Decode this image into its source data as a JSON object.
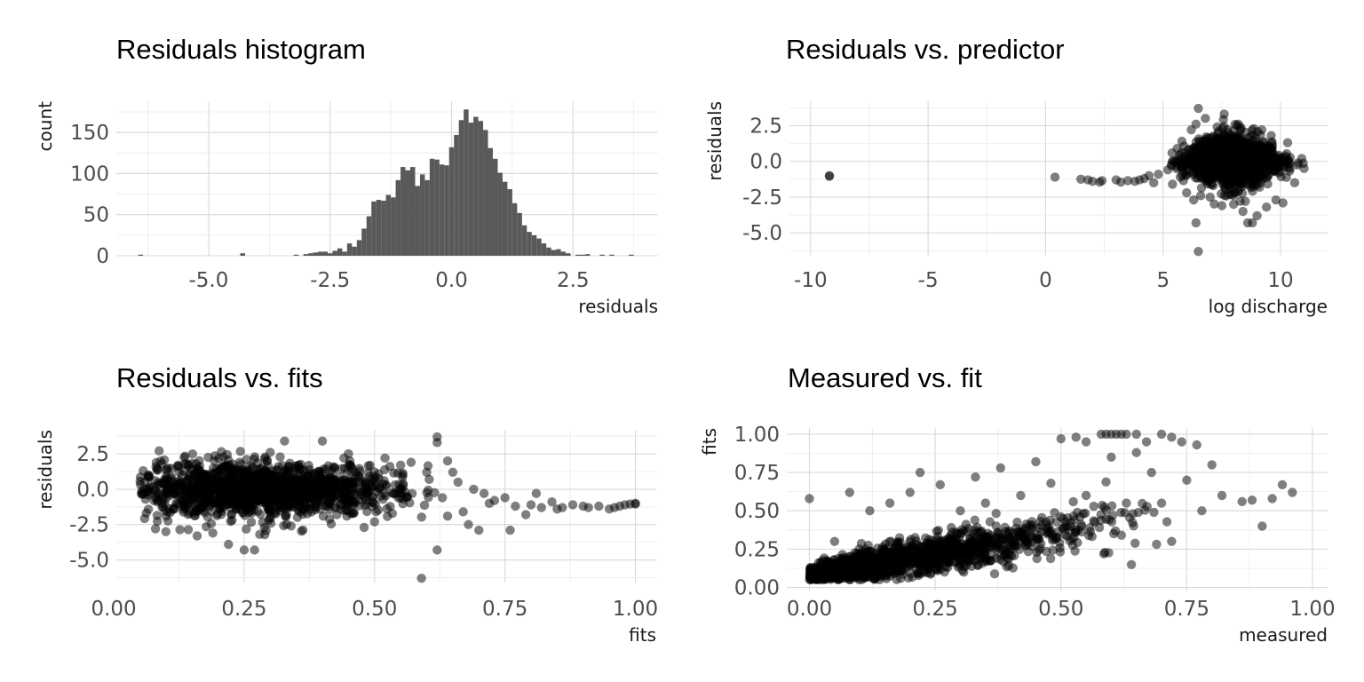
{
  "chart_data": [
    {
      "id": "hist",
      "type": "bar",
      "title": "Residuals histogram",
      "xlabel": "residuals",
      "ylabel": "count",
      "xlim": [
        -6.9,
        4.25
      ],
      "ylim": [
        0,
        188
      ],
      "xticks": [
        -5.0,
        -2.5,
        0.0,
        2.5
      ],
      "xtick_labels": [
        "-5.0",
        "-2.5",
        "0.0",
        "2.5"
      ],
      "yticks": [
        0,
        50,
        100,
        150
      ],
      "ytick_labels": [
        "0",
        "50",
        "100",
        "150"
      ],
      "grid": true,
      "bar_color": "#595959",
      "bin_width": 0.1,
      "bins": [
        {
          "x": -6.4,
          "count": 1
        },
        {
          "x": -4.3,
          "count": 3
        },
        {
          "x": -3.2,
          "count": 1
        },
        {
          "x": -3.0,
          "count": 2
        },
        {
          "x": -2.9,
          "count": 3
        },
        {
          "x": -2.8,
          "count": 4
        },
        {
          "x": -2.7,
          "count": 5
        },
        {
          "x": -2.6,
          "count": 5
        },
        {
          "x": -2.5,
          "count": 3
        },
        {
          "x": -2.4,
          "count": 6
        },
        {
          "x": -2.3,
          "count": 9
        },
        {
          "x": -2.2,
          "count": 5
        },
        {
          "x": -2.1,
          "count": 15
        },
        {
          "x": -2.0,
          "count": 11
        },
        {
          "x": -1.9,
          "count": 19
        },
        {
          "x": -1.8,
          "count": 33
        },
        {
          "x": -1.7,
          "count": 48
        },
        {
          "x": -1.6,
          "count": 66
        },
        {
          "x": -1.5,
          "count": 68
        },
        {
          "x": -1.4,
          "count": 67
        },
        {
          "x": -1.3,
          "count": 74
        },
        {
          "x": -1.2,
          "count": 71
        },
        {
          "x": -1.1,
          "count": 92
        },
        {
          "x": -1.0,
          "count": 108
        },
        {
          "x": -0.9,
          "count": 104
        },
        {
          "x": -0.8,
          "count": 108
        },
        {
          "x": -0.7,
          "count": 85
        },
        {
          "x": -0.6,
          "count": 99
        },
        {
          "x": -0.5,
          "count": 92
        },
        {
          "x": -0.4,
          "count": 118
        },
        {
          "x": -0.3,
          "count": 117
        },
        {
          "x": -0.2,
          "count": 111
        },
        {
          "x": -0.1,
          "count": 110
        },
        {
          "x": 0.0,
          "count": 132
        },
        {
          "x": 0.1,
          "count": 147
        },
        {
          "x": 0.2,
          "count": 165
        },
        {
          "x": 0.3,
          "count": 178
        },
        {
          "x": 0.4,
          "count": 162
        },
        {
          "x": 0.5,
          "count": 169
        },
        {
          "x": 0.6,
          "count": 164
        },
        {
          "x": 0.7,
          "count": 153
        },
        {
          "x": 0.8,
          "count": 131
        },
        {
          "x": 0.9,
          "count": 118
        },
        {
          "x": 1.0,
          "count": 101
        },
        {
          "x": 1.1,
          "count": 90
        },
        {
          "x": 1.2,
          "count": 81
        },
        {
          "x": 1.3,
          "count": 64
        },
        {
          "x": 1.4,
          "count": 52
        },
        {
          "x": 1.5,
          "count": 37
        },
        {
          "x": 1.6,
          "count": 29
        },
        {
          "x": 1.7,
          "count": 25
        },
        {
          "x": 1.8,
          "count": 21
        },
        {
          "x": 1.9,
          "count": 15
        },
        {
          "x": 2.0,
          "count": 10
        },
        {
          "x": 2.1,
          "count": 7
        },
        {
          "x": 2.2,
          "count": 8
        },
        {
          "x": 2.3,
          "count": 5
        },
        {
          "x": 2.4,
          "count": 3
        },
        {
          "x": 2.6,
          "count": 1
        },
        {
          "x": 2.7,
          "count": 1
        },
        {
          "x": 2.8,
          "count": 2
        },
        {
          "x": 3.1,
          "count": 1
        },
        {
          "x": 3.3,
          "count": 1
        },
        {
          "x": 3.7,
          "count": 1
        }
      ]
    },
    {
      "id": "pred",
      "type": "scatter",
      "title": "Residuals vs. predictor",
      "xlabel": "log discharge",
      "ylabel": "residuals",
      "xlim": [
        -10.9,
        12.0
      ],
      "ylim": [
        -6.6,
        4.2
      ],
      "xticks": [
        -10,
        -5,
        0,
        5,
        10
      ],
      "xtick_labels": [
        "-10",
        "-5",
        "0",
        "5",
        "10"
      ],
      "yticks": [
        -5.0,
        -2.5,
        0.0,
        2.5
      ],
      "ytick_labels": [
        "-5.0",
        "-2.5",
        "0.0",
        "2.5"
      ],
      "grid": true,
      "point_color": "#000000",
      "point_opacity": 0.5,
      "points": [
        [
          -9.2,
          -1.0
        ],
        [
          -9.2,
          -1.05
        ],
        [
          0.4,
          -1.1
        ],
        [
          1.5,
          -1.25
        ],
        [
          1.8,
          -1.3
        ],
        [
          2.0,
          -1.4
        ],
        [
          2.3,
          -1.45
        ],
        [
          2.4,
          -1.35
        ],
        [
          3.0,
          -1.3
        ],
        [
          3.2,
          -1.45
        ],
        [
          3.5,
          -1.35
        ],
        [
          3.8,
          -1.4
        ],
        [
          4.0,
          -1.3
        ],
        [
          4.2,
          -1.2
        ],
        [
          4.4,
          -1.0
        ],
        [
          4.6,
          -1.5
        ],
        [
          4.8,
          -0.9
        ],
        [
          5.2,
          -0.6
        ],
        [
          5.4,
          -1.6
        ],
        [
          5.6,
          0.9
        ],
        [
          5.8,
          1.4
        ],
        [
          6.0,
          -2.2
        ],
        [
          6.2,
          2.2
        ],
        [
          6.3,
          -2.7
        ],
        [
          6.4,
          2.6
        ],
        [
          6.5,
          3.7
        ],
        [
          6.5,
          -6.3
        ],
        [
          6.4,
          -4.3
        ],
        [
          6.6,
          -2.4
        ],
        [
          6.8,
          3.0
        ],
        [
          7.0,
          -2.5
        ],
        [
          7.3,
          2.4
        ],
        [
          7.5,
          -3.1
        ],
        [
          7.6,
          3.3
        ],
        [
          7.8,
          -2.3
        ],
        [
          8.0,
          -3.0
        ],
        [
          8.2,
          2.6
        ],
        [
          8.4,
          -3.5
        ],
        [
          8.5,
          -2.8
        ],
        [
          8.6,
          -4.3
        ],
        [
          8.8,
          -4.3
        ],
        [
          9.0,
          -3.8
        ],
        [
          9.2,
          2.2
        ],
        [
          9.4,
          -3.2
        ],
        [
          9.6,
          1.8
        ],
        [
          9.8,
          -2.7
        ],
        [
          10.1,
          -2.9
        ],
        [
          10.3,
          1.3
        ],
        [
          10.6,
          -1.5
        ],
        [
          10.9,
          0.2
        ],
        [
          11.0,
          -0.5
        ],
        [
          5.4,
          0.0
        ],
        [
          5.9,
          -0.8
        ]
      ],
      "cloud": {
        "x_range": [
          5.2,
          11.0
        ],
        "center": [
          8.0,
          0.0
        ],
        "y_spread": 1.0
      }
    },
    {
      "id": "fits",
      "type": "scatter",
      "title": "Residuals vs. fits",
      "xlabel": "fits",
      "ylabel": "residuals",
      "xlim": [
        0.005,
        1.04
      ],
      "ylim": [
        -6.6,
        4.2
      ],
      "xticks": [
        0.0,
        0.25,
        0.5,
        0.75,
        1.0
      ],
      "xtick_labels": [
        "0.00",
        "0.25",
        "0.50",
        "0.75",
        "1.00"
      ],
      "yticks": [
        -5.0,
        -2.5,
        0.0,
        2.5
      ],
      "ytick_labels": [
        "-5.0",
        "-2.5",
        "0.0",
        "2.5"
      ],
      "grid": true,
      "point_color": "#000000",
      "point_opacity": 0.5,
      "points": [
        [
          0.4,
          3.4
        ],
        [
          0.52,
          2.2
        ],
        [
          0.55,
          1.7
        ],
        [
          0.57,
          1.9
        ],
        [
          0.59,
          -6.3
        ],
        [
          0.6,
          1.2
        ],
        [
          0.62,
          3.7
        ],
        [
          0.62,
          3.3
        ],
        [
          0.62,
          -4.3
        ],
        [
          0.63,
          -0.6
        ],
        [
          0.64,
          -1.9
        ],
        [
          0.64,
          2.0
        ],
        [
          0.65,
          1.2
        ],
        [
          0.66,
          0.5
        ],
        [
          0.67,
          -1.6
        ],
        [
          0.68,
          -2.5
        ],
        [
          0.69,
          0.0
        ],
        [
          0.7,
          -2.9
        ],
        [
          0.71,
          -0.3
        ],
        [
          0.72,
          -1.0
        ],
        [
          0.73,
          -0.8
        ],
        [
          0.75,
          -0.6
        ],
        [
          0.76,
          -2.9
        ],
        [
          0.77,
          -1.2
        ],
        [
          0.79,
          -1.8
        ],
        [
          0.8,
          -1.1
        ],
        [
          0.81,
          -0.3
        ],
        [
          0.82,
          -1.3
        ],
        [
          0.84,
          -0.9
        ],
        [
          0.85,
          -1.4
        ],
        [
          0.86,
          -1.3
        ],
        [
          0.88,
          -1.1
        ],
        [
          0.9,
          -1.2
        ],
        [
          0.91,
          -1.3
        ],
        [
          0.93,
          -1.2
        ],
        [
          0.95,
          -1.4
        ],
        [
          0.96,
          -1.3
        ],
        [
          0.97,
          -1.2
        ],
        [
          0.98,
          -1.1
        ],
        [
          0.99,
          -1.05
        ],
        [
          1.0,
          -1.0
        ],
        [
          1.0,
          -1.05
        ],
        [
          0.08,
          -2.8
        ],
        [
          0.1,
          -3.0
        ],
        [
          0.16,
          -3.3
        ],
        [
          0.19,
          -3.1
        ],
        [
          0.22,
          -3.9
        ],
        [
          0.25,
          -4.3
        ],
        [
          0.27,
          -4.3
        ],
        [
          0.28,
          -3.2
        ],
        [
          0.3,
          2.6
        ],
        [
          0.34,
          -2.6
        ],
        [
          0.45,
          2.5
        ],
        [
          0.48,
          -2.7
        ],
        [
          0.5,
          -2.3
        ]
      ],
      "cloud": {
        "x_range": [
          0.05,
          0.62
        ],
        "center": [
          0.28,
          0.0
        ],
        "y_spread": 0.95
      }
    },
    {
      "id": "meas",
      "type": "scatter",
      "title": "Measured vs. fit",
      "xlabel": "measured",
      "ylabel": "fits",
      "xlim": [
        -0.045,
        1.03
      ],
      "ylim": [
        -0.02,
        1.04
      ],
      "xticks": [
        0.0,
        0.25,
        0.5,
        0.75,
        1.0
      ],
      "xtick_labels": [
        "0.00",
        "0.25",
        "0.50",
        "0.75",
        "1.00"
      ],
      "yticks": [
        0.0,
        0.25,
        0.5,
        0.75,
        1.0
      ],
      "ytick_labels": [
        "0.00",
        "0.25",
        "0.50",
        "0.75",
        "1.00"
      ],
      "grid": true,
      "point_color": "#000000",
      "point_opacity": 0.5,
      "points": [
        [
          0.0,
          0.58
        ],
        [
          0.08,
          0.62
        ],
        [
          0.22,
          0.75
        ],
        [
          0.26,
          0.67
        ],
        [
          0.33,
          0.72
        ],
        [
          0.38,
          0.78
        ],
        [
          0.45,
          0.82
        ],
        [
          0.5,
          0.97
        ],
        [
          0.53,
          0.98
        ],
        [
          0.55,
          0.95
        ],
        [
          0.58,
          1.0
        ],
        [
          0.59,
          1.0
        ],
        [
          0.6,
          1.0
        ],
        [
          0.61,
          1.0
        ],
        [
          0.62,
          1.0
        ],
        [
          0.63,
          1.0
        ],
        [
          0.65,
          1.0
        ],
        [
          0.67,
          0.95
        ],
        [
          0.7,
          1.0
        ],
        [
          0.72,
          0.98
        ],
        [
          0.74,
          0.95
        ],
        [
          0.77,
          0.93
        ],
        [
          0.8,
          0.8
        ],
        [
          0.82,
          0.6
        ],
        [
          0.86,
          0.56
        ],
        [
          0.88,
          0.57
        ],
        [
          0.92,
          0.58
        ],
        [
          0.94,
          0.67
        ],
        [
          0.96,
          0.62
        ],
        [
          0.9,
          0.4
        ],
        [
          0.72,
          0.3
        ],
        [
          0.78,
          0.5
        ],
        [
          0.68,
          0.75
        ],
        [
          0.63,
          0.55
        ],
        [
          0.55,
          0.6
        ],
        [
          0.48,
          0.68
        ],
        [
          0.42,
          0.6
        ],
        [
          0.35,
          0.55
        ],
        [
          0.3,
          0.5
        ],
        [
          0.12,
          0.5
        ],
        [
          0.16,
          0.55
        ],
        [
          0.2,
          0.62
        ],
        [
          0.05,
          0.3
        ],
        [
          0.7,
          0.55
        ],
        [
          0.75,
          0.7
        ],
        [
          0.6,
          0.85
        ],
        [
          0.65,
          0.88
        ]
      ],
      "cloud": {
        "x_range": [
          0.0,
          0.72
        ],
        "slope": 0.55,
        "intercept": 0.08,
        "y_spread": 0.09
      }
    }
  ]
}
